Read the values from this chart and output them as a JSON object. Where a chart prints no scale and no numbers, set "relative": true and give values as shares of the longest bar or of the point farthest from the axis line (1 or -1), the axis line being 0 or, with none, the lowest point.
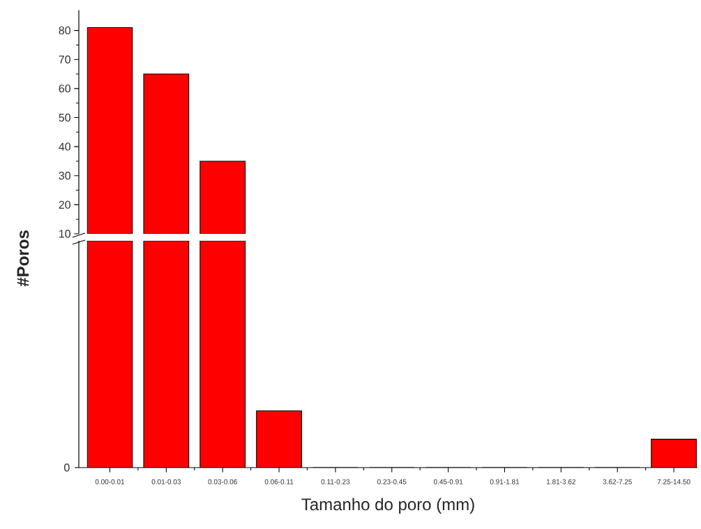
{
  "chart_data": [
    {
      "type": "bar",
      "categories": [
        null,
        null,
        null
      ],
      "values": [
        81,
        65,
        35
      ],
      "color": "#ff0000",
      "ylim": [
        10,
        87
      ],
      "yticks": [
        10,
        20,
        30,
        40,
        50,
        60,
        70,
        80
      ],
      "tick_labels": "y"
    },
    {
      "type": "bar",
      "categories": [
        "0.00-0.01",
        "0.01-0.03",
        "0.03-0.06",
        "0.06-0.11",
        "0.11-0.23",
        "0.23-0.45",
        "0.45-0.91",
        "0.91-1.81",
        "1.81-3.62",
        "3.62-7.25",
        "7.25-14.50"
      ],
      "values": [
        1,
        1,
        1,
        0.25,
        0,
        0,
        0,
        0,
        0,
        0,
        0.125
      ],
      "color": "#ff0000",
      "relative": true,
      "annotations": [
        "0"
      ],
      "xlabel": "Tamanho do poro (mm)",
      "ylabel": "#Poros"
    }
  ]
}
